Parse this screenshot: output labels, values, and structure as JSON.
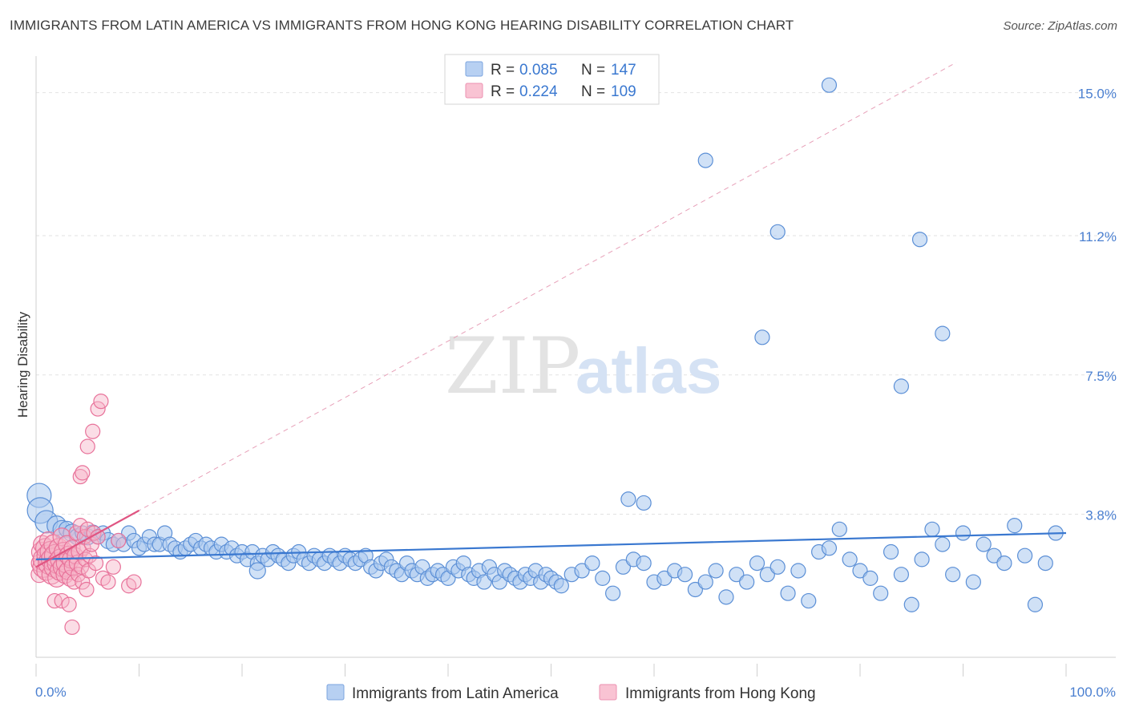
{
  "title": "IMMIGRANTS FROM LATIN AMERICA VS IMMIGRANTS FROM HONG KONG HEARING DISABILITY CORRELATION CHART",
  "source": "Source: ZipAtlas.com",
  "watermark": {
    "zip": "ZIP",
    "atlas": "atlas"
  },
  "colors": {
    "blue_fill": "#aac8ee",
    "blue_stroke": "#5b8fd6",
    "blue_line": "#3a78d0",
    "pink_fill": "#f6b3c8",
    "pink_stroke": "#e8729a",
    "pink_line": "#e05582",
    "tick_label": "#4a7fd0",
    "grid": "#e2e2e2"
  },
  "legend_top": {
    "series": [
      {
        "r_label": "R =",
        "r_value": "0.085",
        "n_label": "N =",
        "n_value": "147"
      },
      {
        "r_label": "R =",
        "r_value": "0.224",
        "n_label": "N =",
        "n_value": "109"
      }
    ]
  },
  "legend_bottom": [
    "Immigrants from Latin America",
    "Immigrants from Hong Kong"
  ],
  "chart_data": {
    "type": "scatter",
    "title": "IMMIGRANTS FROM LATIN AMERICA VS IMMIGRANTS FROM HONG KONG HEARING DISABILITY CORRELATION CHART",
    "xlabel": "",
    "ylabel": "Hearing Disability",
    "xlim": [
      0,
      100
    ],
    "ylim": [
      0,
      15.8
    ],
    "x_tick_labels": [
      "0.0%",
      "100.0%"
    ],
    "y_ticks": [
      3.8,
      7.5,
      11.2,
      15.0
    ],
    "y_tick_labels": [
      "3.8%",
      "7.5%",
      "11.2%",
      "15.0%"
    ],
    "grid": true,
    "legend_position": "top-center",
    "series": [
      {
        "name": "Immigrants from Latin America",
        "r": 0.085,
        "n": 147,
        "trend": {
          "x": [
            0,
            100
          ],
          "y": [
            2.6,
            3.3
          ],
          "style": "solid"
        },
        "points": [
          [
            0.3,
            4.3,
            15
          ],
          [
            0.4,
            3.9,
            16
          ],
          [
            1,
            3.6,
            14
          ],
          [
            2,
            3.5,
            12
          ],
          [
            2.5,
            3.4,
            11
          ],
          [
            3,
            3.4,
            10
          ],
          [
            3.5,
            3.3,
            11
          ],
          [
            4,
            3.2,
            10
          ],
          [
            4.5,
            3.3,
            9
          ],
          [
            5,
            3.2,
            10
          ],
          [
            5.5,
            3.3,
            10
          ],
          [
            6,
            3.2,
            9
          ],
          [
            6.5,
            3.3,
            9
          ],
          [
            7,
            3.1,
            10
          ],
          [
            7.5,
            3.0,
            9
          ],
          [
            8,
            3.1,
            9
          ],
          [
            8.5,
            3.0,
            9
          ],
          [
            9,
            3.3,
            9
          ],
          [
            9.5,
            3.1,
            9
          ],
          [
            10,
            2.9,
            9
          ],
          [
            10.5,
            3.0,
            9
          ],
          [
            11,
            3.2,
            9
          ],
          [
            11.5,
            3.0,
            9
          ],
          [
            12,
            3.0,
            9
          ],
          [
            12.5,
            3.3,
            9
          ],
          [
            13,
            3.0,
            9
          ],
          [
            13.5,
            2.9,
            9
          ],
          [
            14,
            2.8,
            9
          ],
          [
            14.5,
            2.9,
            9
          ],
          [
            15,
            3.0,
            9
          ],
          [
            15.5,
            3.1,
            9
          ],
          [
            16,
            2.9,
            9
          ],
          [
            16.5,
            3.0,
            9
          ],
          [
            17,
            2.9,
            9
          ],
          [
            17.5,
            2.8,
            9
          ],
          [
            18,
            3.0,
            9
          ],
          [
            18.5,
            2.8,
            9
          ],
          [
            19,
            2.9,
            9
          ],
          [
            19.5,
            2.7,
            9
          ],
          [
            20,
            2.8,
            9
          ],
          [
            20.5,
            2.6,
            9
          ],
          [
            21,
            2.8,
            9
          ],
          [
            21.5,
            2.5,
            9
          ],
          [
            22,
            2.7,
            9
          ],
          [
            22.5,
            2.6,
            9
          ],
          [
            23,
            2.8,
            9
          ],
          [
            23.5,
            2.7,
            9
          ],
          [
            24,
            2.6,
            9
          ],
          [
            24.5,
            2.5,
            9
          ],
          [
            25,
            2.7,
            9
          ],
          [
            25.5,
            2.8,
            9
          ],
          [
            26,
            2.6,
            9
          ],
          [
            26.5,
            2.5,
            9
          ],
          [
            27,
            2.7,
            9
          ],
          [
            27.5,
            2.6,
            9
          ],
          [
            28,
            2.5,
            9
          ],
          [
            28.5,
            2.7,
            9
          ],
          [
            29,
            2.6,
            9
          ],
          [
            29.5,
            2.5,
            9
          ],
          [
            30,
            2.7,
            9
          ],
          [
            30.5,
            2.6,
            9
          ],
          [
            31,
            2.5,
            9
          ],
          [
            31.5,
            2.6,
            9
          ],
          [
            32,
            2.7,
            9
          ],
          [
            32.5,
            2.4,
            9
          ],
          [
            33,
            2.3,
            9
          ],
          [
            33.5,
            2.5,
            9
          ],
          [
            34,
            2.6,
            9
          ],
          [
            34.5,
            2.4,
            9
          ],
          [
            35,
            2.3,
            9
          ],
          [
            35.5,
            2.2,
            9
          ],
          [
            36,
            2.5,
            9
          ],
          [
            36.5,
            2.3,
            9
          ],
          [
            37,
            2.2,
            9
          ],
          [
            37.5,
            2.4,
            9
          ],
          [
            38,
            2.1,
            9
          ],
          [
            38.5,
            2.2,
            9
          ],
          [
            39,
            2.3,
            9
          ],
          [
            39.5,
            2.2,
            9
          ],
          [
            40,
            2.1,
            9
          ],
          [
            40.5,
            2.4,
            9
          ],
          [
            41,
            2.3,
            9
          ],
          [
            41.5,
            2.5,
            9
          ],
          [
            42,
            2.2,
            9
          ],
          [
            42.5,
            2.1,
            9
          ],
          [
            43,
            2.3,
            9
          ],
          [
            43.5,
            2.0,
            9
          ],
          [
            44,
            2.4,
            9
          ],
          [
            44.5,
            2.2,
            9
          ],
          [
            45,
            2.0,
            9
          ],
          [
            45.5,
            2.3,
            9
          ],
          [
            46,
            2.2,
            9
          ],
          [
            46.5,
            2.1,
            9
          ],
          [
            47,
            2.0,
            9
          ],
          [
            47.5,
            2.2,
            9
          ],
          [
            48,
            2.1,
            9
          ],
          [
            48.5,
            2.3,
            9
          ],
          [
            49,
            2.0,
            9
          ],
          [
            49.5,
            2.2,
            9
          ],
          [
            50,
            2.1,
            9
          ],
          [
            50.5,
            2.0,
            9
          ],
          [
            51,
            1.9,
            9
          ],
          [
            52,
            2.2,
            9
          ],
          [
            53,
            2.3,
            9
          ],
          [
            54,
            2.5,
            9
          ],
          [
            55,
            2.1,
            9
          ],
          [
            56,
            1.7,
            9
          ],
          [
            57,
            2.4,
            9
          ],
          [
            58,
            2.6,
            9
          ],
          [
            59,
            2.5,
            9
          ],
          [
            60,
            2.0,
            9
          ],
          [
            61,
            2.1,
            9
          ],
          [
            62,
            2.3,
            9
          ],
          [
            63,
            2.2,
            9
          ],
          [
            64,
            1.8,
            9
          ],
          [
            65,
            2.0,
            9
          ],
          [
            66,
            2.3,
            9
          ],
          [
            67,
            1.6,
            9
          ],
          [
            68,
            2.2,
            9
          ],
          [
            69,
            2.0,
            9
          ],
          [
            70,
            2.5,
            9
          ],
          [
            71,
            2.2,
            9
          ],
          [
            72,
            2.4,
            9
          ],
          [
            73,
            1.7,
            9
          ],
          [
            74,
            2.3,
            9
          ],
          [
            75,
            1.5,
            9
          ],
          [
            76,
            2.8,
            9
          ],
          [
            77,
            2.9,
            9
          ],
          [
            78,
            3.4,
            9
          ],
          [
            79,
            2.6,
            9
          ],
          [
            80,
            2.3,
            9
          ],
          [
            81,
            2.1,
            9
          ],
          [
            82,
            1.7,
            9
          ],
          [
            83,
            2.8,
            9
          ],
          [
            84,
            2.2,
            9
          ],
          [
            85,
            1.4,
            9
          ],
          [
            86,
            2.6,
            9
          ],
          [
            87,
            3.4,
            9
          ],
          [
            88,
            3.0,
            9
          ],
          [
            89,
            2.2,
            9
          ],
          [
            90,
            3.3,
            9
          ],
          [
            91,
            2.0,
            9
          ],
          [
            92,
            3.0,
            9
          ],
          [
            93,
            2.7,
            9
          ],
          [
            94,
            2.5,
            9
          ],
          [
            95,
            3.5,
            9
          ],
          [
            96,
            2.7,
            9
          ],
          [
            97,
            1.4,
            9
          ],
          [
            98,
            2.5,
            9
          ],
          [
            99,
            3.3,
            9
          ],
          [
            21.5,
            2.3,
            10
          ],
          [
            57.5,
            4.2,
            9
          ],
          [
            65,
            13.2,
            9
          ],
          [
            70.5,
            8.5,
            9
          ],
          [
            72,
            11.3,
            9
          ],
          [
            77,
            15.2,
            9
          ],
          [
            85.8,
            11.1,
            9
          ],
          [
            88,
            8.6,
            9
          ],
          [
            84,
            7.2,
            9
          ],
          [
            59,
            4.1,
            9
          ]
        ]
      },
      {
        "name": "Immigrants from Hong Kong",
        "r": 0.224,
        "n": 109,
        "trend": {
          "x": [
            0,
            10
          ],
          "y": [
            2.4,
            3.9
          ],
          "style": "solid",
          "extended": {
            "x": [
              0,
              100
            ],
            "y": [
              2.4,
              17.4
            ],
            "style": "dashed"
          }
        },
        "points": [
          [
            0.3,
            2.2,
            10
          ],
          [
            0.4,
            2.5,
            11
          ],
          [
            0.5,
            2.8,
            12
          ],
          [
            0.6,
            3.0,
            11
          ],
          [
            0.7,
            2.4,
            13
          ],
          [
            0.8,
            2.6,
            14
          ],
          [
            0.9,
            2.9,
            12
          ],
          [
            1.0,
            2.3,
            12
          ],
          [
            1.1,
            2.7,
            13
          ],
          [
            1.2,
            3.1,
            11
          ],
          [
            1.3,
            2.5,
            14
          ],
          [
            1.4,
            2.8,
            13
          ],
          [
            1.5,
            2.2,
            12
          ],
          [
            1.6,
            2.6,
            14
          ],
          [
            1.7,
            3.0,
            12
          ],
          [
            1.8,
            2.4,
            13
          ],
          [
            1.9,
            2.7,
            14
          ],
          [
            2.0,
            2.1,
            11
          ],
          [
            2.1,
            2.5,
            13
          ],
          [
            2.2,
            2.9,
            12
          ],
          [
            2.3,
            2.3,
            12
          ],
          [
            2.4,
            2.6,
            13
          ],
          [
            2.5,
            3.2,
            11
          ],
          [
            2.6,
            2.4,
            12
          ],
          [
            2.7,
            2.8,
            12
          ],
          [
            2.8,
            2.2,
            11
          ],
          [
            2.9,
            2.5,
            12
          ],
          [
            3.0,
            3.0,
            11
          ],
          [
            3.1,
            2.3,
            11
          ],
          [
            3.2,
            2.7,
            12
          ],
          [
            3.3,
            2.1,
            10
          ],
          [
            3.4,
            2.6,
            11
          ],
          [
            3.5,
            2.9,
            10
          ],
          [
            3.6,
            2.4,
            11
          ],
          [
            3.7,
            2.0,
            9
          ],
          [
            3.8,
            2.7,
            10
          ],
          [
            3.9,
            3.3,
            9
          ],
          [
            4.0,
            2.5,
            10
          ],
          [
            4.1,
            2.2,
            9
          ],
          [
            4.2,
            2.8,
            10
          ],
          [
            4.3,
            3.5,
            9
          ],
          [
            4.4,
            2.4,
            9
          ],
          [
            4.5,
            2.0,
            9
          ],
          [
            4.6,
            2.9,
            9
          ],
          [
            4.7,
            3.2,
            9
          ],
          [
            4.8,
            2.6,
            9
          ],
          [
            4.9,
            1.8,
            9
          ],
          [
            5.0,
            3.4,
            9
          ],
          [
            5.1,
            2.3,
            9
          ],
          [
            5.2,
            2.7,
            9
          ],
          [
            5.4,
            3.0,
            9
          ],
          [
            5.6,
            3.3,
            9
          ],
          [
            5.8,
            2.5,
            9
          ],
          [
            6.0,
            3.2,
            9
          ],
          [
            6.5,
            2.1,
            9
          ],
          [
            7.0,
            2.0,
            9
          ],
          [
            7.5,
            2.4,
            9
          ],
          [
            8.0,
            3.1,
            9
          ],
          [
            9.0,
            1.9,
            9
          ],
          [
            9.5,
            2.0,
            9
          ],
          [
            1.8,
            1.5,
            9
          ],
          [
            2.5,
            1.5,
            9
          ],
          [
            3.2,
            1.4,
            9
          ],
          [
            3.5,
            0.8,
            9
          ],
          [
            4.3,
            4.8,
            9
          ],
          [
            4.5,
            4.9,
            9
          ],
          [
            5.0,
            5.6,
            9
          ],
          [
            5.5,
            6.0,
            9
          ],
          [
            6.0,
            6.6,
            9
          ],
          [
            6.3,
            6.8,
            9
          ]
        ]
      }
    ]
  }
}
